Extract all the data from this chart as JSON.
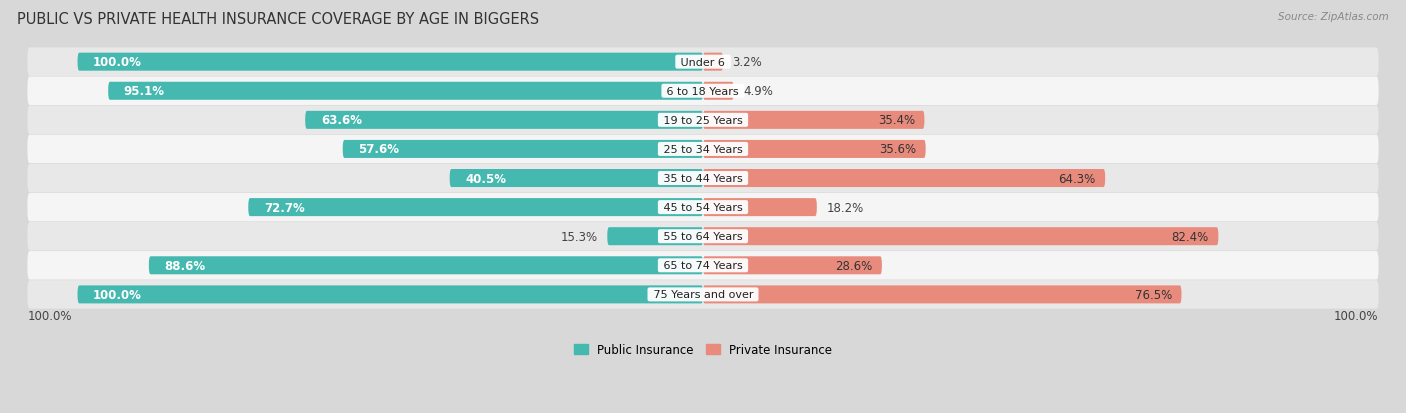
{
  "title": "PUBLIC VS PRIVATE HEALTH INSURANCE COVERAGE BY AGE IN BIGGERS",
  "source": "Source: ZipAtlas.com",
  "categories": [
    "Under 6",
    "6 to 18 Years",
    "19 to 25 Years",
    "25 to 34 Years",
    "35 to 44 Years",
    "45 to 54 Years",
    "55 to 64 Years",
    "65 to 74 Years",
    "75 Years and over"
  ],
  "public_values": [
    100.0,
    95.1,
    63.6,
    57.6,
    40.5,
    72.7,
    15.3,
    88.6,
    100.0
  ],
  "private_values": [
    3.2,
    4.9,
    35.4,
    35.6,
    64.3,
    18.2,
    82.4,
    28.6,
    76.5
  ],
  "public_color": "#45b8b0",
  "private_color": "#e88b7d",
  "row_bg_colors": [
    "#e8e8e8",
    "#f5f5f5",
    "#e8e8e8",
    "#f5f5f5",
    "#e8e8e8",
    "#f5f5f5",
    "#e8e8e8",
    "#f5f5f5",
    "#e8e8e8"
  ],
  "bg_color": "#d8d8d8",
  "max_val": 100.0,
  "bar_height": 0.62,
  "title_fontsize": 10.5,
  "label_fontsize": 8.5,
  "category_fontsize": 8.0,
  "source_fontsize": 7.5
}
